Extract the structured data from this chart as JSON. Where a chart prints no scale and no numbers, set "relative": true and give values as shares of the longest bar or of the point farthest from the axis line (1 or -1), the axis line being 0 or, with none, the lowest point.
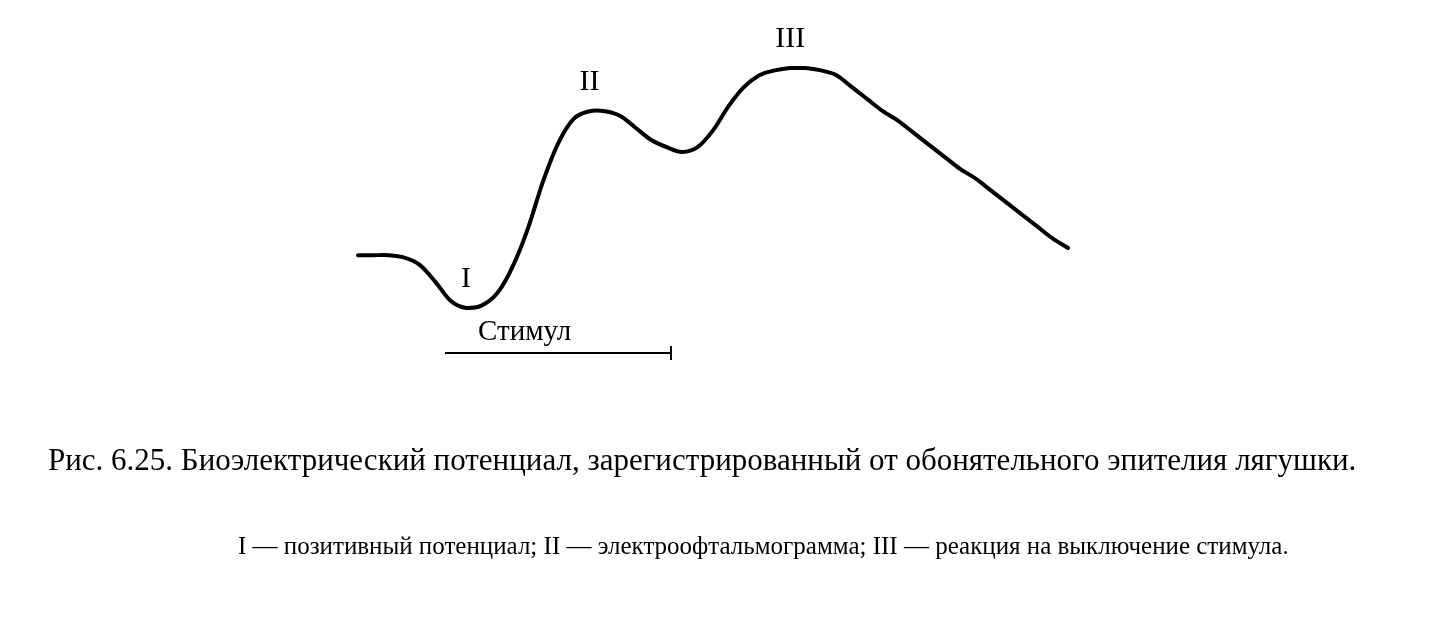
{
  "chart_data": {
    "type": "line",
    "relative": true,
    "color": "#000000",
    "categories": [
      null,
      null,
      null,
      null,
      null,
      null,
      null,
      null,
      null,
      null,
      null,
      null,
      null,
      null,
      null,
      null,
      null,
      null,
      null,
      null,
      null,
      null,
      null,
      null,
      null,
      null,
      null,
      null,
      null,
      null,
      null,
      null,
      null,
      null,
      null,
      null,
      null,
      null,
      null,
      null,
      null,
      null,
      null,
      null,
      null,
      null,
      null
    ],
    "values": [
      0.22,
      0.22,
      0.22,
      0.21,
      0.18,
      0.11,
      0.03,
      0,
      0.01,
      0.06,
      0.17,
      0.33,
      0.53,
      0.69,
      0.79,
      0.82,
      0.82,
      0.8,
      0.75,
      0.7,
      0.67,
      0.65,
      0.67,
      0.74,
      0.84,
      0.92,
      0.97,
      0.99,
      1,
      1,
      0.99,
      0.97,
      0.92,
      0.87,
      0.82,
      0.78,
      0.73,
      0.68,
      0.63,
      0.58,
      0.54,
      0.49,
      0.44,
      0.39,
      0.34,
      0.29,
      0.25
    ],
    "annotations": [
      {
        "text": "I",
        "y": 0
      },
      {
        "text": "II",
        "y": 0.82
      },
      {
        "text": "III",
        "y": 1
      },
      "Стимул",
      "Рис. 6.25. Биоэлектрический потенциал, зарегистрированный от обонятельного эпителия лягушки.",
      "I — позитивный потенциал; II — электроофтальмограмма; III — реакция на выключение стимула."
    ]
  }
}
